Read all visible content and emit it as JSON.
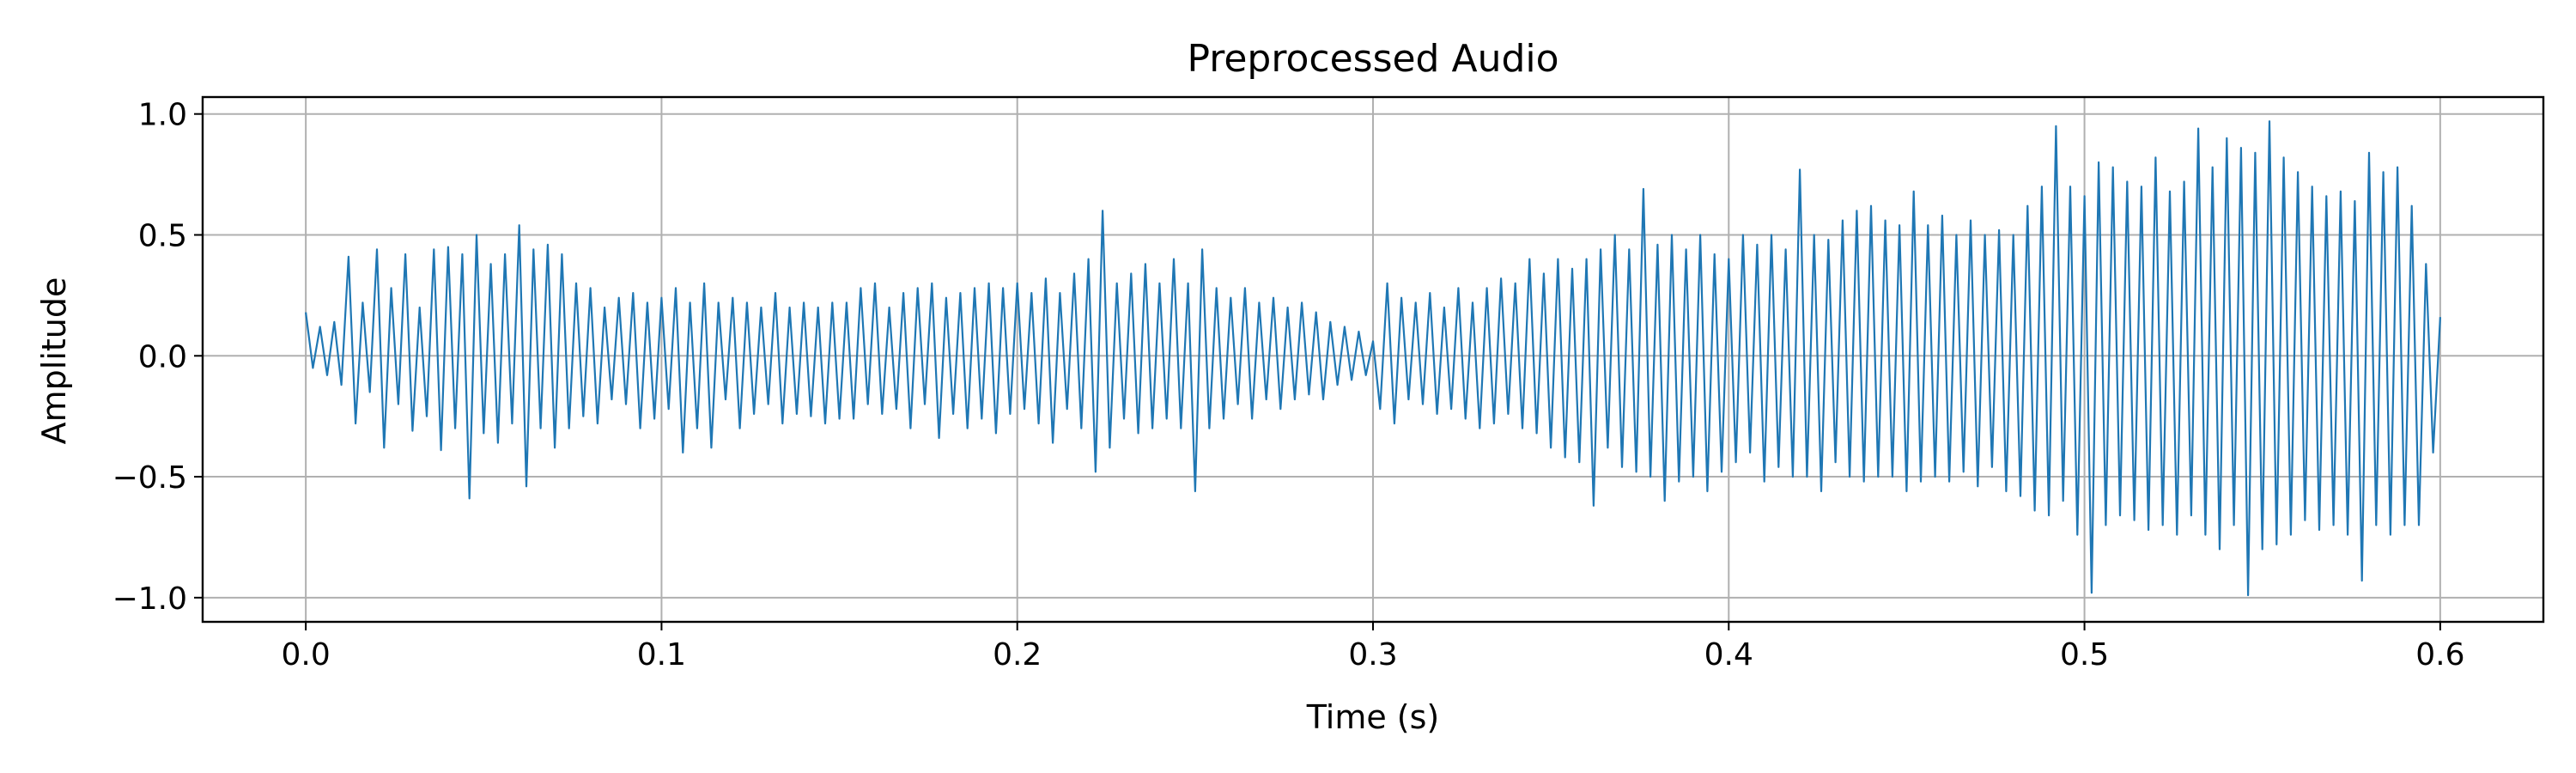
{
  "chart_data": {
    "type": "line",
    "title": "Preprocessed Audio",
    "xlabel": "Time (s)",
    "ylabel": "Amplitude",
    "xlim": [
      -0.029,
      0.629
    ],
    "ylim": [
      -1.1,
      1.07
    ],
    "xticks": [
      0.0,
      0.1,
      0.2,
      0.3,
      0.4,
      0.5,
      0.6
    ],
    "xtick_labels": [
      "0.0",
      "0.1",
      "0.2",
      "0.3",
      "0.4",
      "0.5",
      "0.6"
    ],
    "yticks": [
      1.0,
      0.5,
      0.0,
      -0.5,
      -1.0
    ],
    "ytick_labels": [
      "1.0",
      "0.5",
      "0.0",
      "−0.5",
      "−1.0"
    ],
    "grid": true,
    "line_color": "#1f77b4",
    "series": [
      {
        "values": [
          [
            0.0,
            0.18
          ],
          [
            0.002,
            -0.05
          ],
          [
            0.004,
            0.12
          ],
          [
            0.006,
            -0.08
          ],
          [
            0.008,
            0.14
          ],
          [
            0.01,
            -0.12
          ],
          [
            0.012,
            0.41
          ],
          [
            0.014,
            -0.28
          ],
          [
            0.016,
            0.22
          ],
          [
            0.018,
            -0.15
          ],
          [
            0.02,
            0.44
          ],
          [
            0.022,
            -0.38
          ],
          [
            0.024,
            0.28
          ],
          [
            0.026,
            -0.2
          ],
          [
            0.028,
            0.42
          ],
          [
            0.03,
            -0.31
          ],
          [
            0.032,
            0.2
          ],
          [
            0.034,
            -0.25
          ],
          [
            0.036,
            0.44
          ],
          [
            0.038,
            -0.39
          ],
          [
            0.04,
            0.45
          ],
          [
            0.042,
            -0.3
          ],
          [
            0.044,
            0.42
          ],
          [
            0.046,
            -0.59
          ],
          [
            0.048,
            0.5
          ],
          [
            0.05,
            -0.32
          ],
          [
            0.052,
            0.38
          ],
          [
            0.054,
            -0.36
          ],
          [
            0.056,
            0.42
          ],
          [
            0.058,
            -0.28
          ],
          [
            0.06,
            0.54
          ],
          [
            0.062,
            -0.54
          ],
          [
            0.064,
            0.44
          ],
          [
            0.066,
            -0.3
          ],
          [
            0.068,
            0.46
          ],
          [
            0.07,
            -0.38
          ],
          [
            0.072,
            0.42
          ],
          [
            0.074,
            -0.3
          ],
          [
            0.076,
            0.3
          ],
          [
            0.078,
            -0.25
          ],
          [
            0.08,
            0.28
          ],
          [
            0.082,
            -0.28
          ],
          [
            0.084,
            0.2
          ],
          [
            0.086,
            -0.18
          ],
          [
            0.088,
            0.24
          ],
          [
            0.09,
            -0.2
          ],
          [
            0.092,
            0.26
          ],
          [
            0.094,
            -0.3
          ],
          [
            0.096,
            0.22
          ],
          [
            0.098,
            -0.26
          ],
          [
            0.1,
            0.24
          ],
          [
            0.102,
            -0.22
          ],
          [
            0.104,
            0.28
          ],
          [
            0.106,
            -0.4
          ],
          [
            0.108,
            0.22
          ],
          [
            0.11,
            -0.3
          ],
          [
            0.112,
            0.3
          ],
          [
            0.114,
            -0.38
          ],
          [
            0.116,
            0.22
          ],
          [
            0.118,
            -0.18
          ],
          [
            0.12,
            0.24
          ],
          [
            0.122,
            -0.3
          ],
          [
            0.124,
            0.22
          ],
          [
            0.126,
            -0.24
          ],
          [
            0.128,
            0.2
          ],
          [
            0.13,
            -0.2
          ],
          [
            0.132,
            0.26
          ],
          [
            0.134,
            -0.28
          ],
          [
            0.136,
            0.2
          ],
          [
            0.138,
            -0.24
          ],
          [
            0.14,
            0.22
          ],
          [
            0.142,
            -0.25
          ],
          [
            0.144,
            0.2
          ],
          [
            0.146,
            -0.28
          ],
          [
            0.148,
            0.22
          ],
          [
            0.15,
            -0.26
          ],
          [
            0.152,
            0.22
          ],
          [
            0.154,
            -0.26
          ],
          [
            0.156,
            0.28
          ],
          [
            0.158,
            -0.2
          ],
          [
            0.16,
            0.3
          ],
          [
            0.162,
            -0.24
          ],
          [
            0.164,
            0.2
          ],
          [
            0.166,
            -0.22
          ],
          [
            0.168,
            0.26
          ],
          [
            0.17,
            -0.3
          ],
          [
            0.172,
            0.28
          ],
          [
            0.174,
            -0.2
          ],
          [
            0.176,
            0.3
          ],
          [
            0.178,
            -0.34
          ],
          [
            0.18,
            0.24
          ],
          [
            0.182,
            -0.24
          ],
          [
            0.184,
            0.26
          ],
          [
            0.186,
            -0.3
          ],
          [
            0.188,
            0.28
          ],
          [
            0.19,
            -0.26
          ],
          [
            0.192,
            0.3
          ],
          [
            0.194,
            -0.32
          ],
          [
            0.196,
            0.28
          ],
          [
            0.198,
            -0.24
          ],
          [
            0.2,
            0.3
          ],
          [
            0.202,
            -0.22
          ],
          [
            0.204,
            0.26
          ],
          [
            0.206,
            -0.28
          ],
          [
            0.208,
            0.32
          ],
          [
            0.21,
            -0.36
          ],
          [
            0.212,
            0.26
          ],
          [
            0.214,
            -0.22
          ],
          [
            0.216,
            0.34
          ],
          [
            0.218,
            -0.3
          ],
          [
            0.22,
            0.4
          ],
          [
            0.222,
            -0.48
          ],
          [
            0.224,
            0.6
          ],
          [
            0.226,
            -0.38
          ],
          [
            0.228,
            0.3
          ],
          [
            0.23,
            -0.26
          ],
          [
            0.232,
            0.34
          ],
          [
            0.234,
            -0.32
          ],
          [
            0.236,
            0.38
          ],
          [
            0.238,
            -0.3
          ],
          [
            0.24,
            0.3
          ],
          [
            0.242,
            -0.26
          ],
          [
            0.244,
            0.4
          ],
          [
            0.246,
            -0.3
          ],
          [
            0.248,
            0.3
          ],
          [
            0.25,
            -0.56
          ],
          [
            0.252,
            0.44
          ],
          [
            0.254,
            -0.3
          ],
          [
            0.256,
            0.28
          ],
          [
            0.258,
            -0.26
          ],
          [
            0.26,
            0.24
          ],
          [
            0.262,
            -0.2
          ],
          [
            0.264,
            0.28
          ],
          [
            0.266,
            -0.26
          ],
          [
            0.268,
            0.22
          ],
          [
            0.27,
            -0.18
          ],
          [
            0.272,
            0.24
          ],
          [
            0.274,
            -0.22
          ],
          [
            0.276,
            0.2
          ],
          [
            0.278,
            -0.18
          ],
          [
            0.28,
            0.22
          ],
          [
            0.282,
            -0.16
          ],
          [
            0.284,
            0.18
          ],
          [
            0.286,
            -0.18
          ],
          [
            0.288,
            0.14
          ],
          [
            0.29,
            -0.12
          ],
          [
            0.292,
            0.12
          ],
          [
            0.294,
            -0.1
          ],
          [
            0.296,
            0.1
          ],
          [
            0.298,
            -0.08
          ],
          [
            0.3,
            0.06
          ],
          [
            0.302,
            -0.22
          ],
          [
            0.304,
            0.3
          ],
          [
            0.306,
            -0.28
          ],
          [
            0.308,
            0.24
          ],
          [
            0.31,
            -0.18
          ],
          [
            0.312,
            0.22
          ],
          [
            0.314,
            -0.2
          ],
          [
            0.316,
            0.26
          ],
          [
            0.318,
            -0.24
          ],
          [
            0.32,
            0.2
          ],
          [
            0.322,
            -0.22
          ],
          [
            0.324,
            0.28
          ],
          [
            0.326,
            -0.26
          ],
          [
            0.328,
            0.22
          ],
          [
            0.33,
            -0.3
          ],
          [
            0.332,
            0.28
          ],
          [
            0.334,
            -0.28
          ],
          [
            0.336,
            0.32
          ],
          [
            0.338,
            -0.24
          ],
          [
            0.34,
            0.3
          ],
          [
            0.342,
            -0.3
          ],
          [
            0.344,
            0.4
          ],
          [
            0.346,
            -0.32
          ],
          [
            0.348,
            0.34
          ],
          [
            0.35,
            -0.38
          ],
          [
            0.352,
            0.4
          ],
          [
            0.354,
            -0.42
          ],
          [
            0.356,
            0.36
          ],
          [
            0.358,
            -0.44
          ],
          [
            0.36,
            0.4
          ],
          [
            0.362,
            -0.62
          ],
          [
            0.364,
            0.44
          ],
          [
            0.366,
            -0.38
          ],
          [
            0.368,
            0.5
          ],
          [
            0.37,
            -0.46
          ],
          [
            0.372,
            0.44
          ],
          [
            0.374,
            -0.48
          ],
          [
            0.376,
            0.69
          ],
          [
            0.378,
            -0.5
          ],
          [
            0.38,
            0.46
          ],
          [
            0.382,
            -0.6
          ],
          [
            0.384,
            0.5
          ],
          [
            0.386,
            -0.52
          ],
          [
            0.388,
            0.44
          ],
          [
            0.39,
            -0.5
          ],
          [
            0.392,
            0.5
          ],
          [
            0.394,
            -0.56
          ],
          [
            0.396,
            0.42
          ],
          [
            0.398,
            -0.48
          ],
          [
            0.4,
            0.4
          ],
          [
            0.402,
            -0.44
          ],
          [
            0.404,
            0.5
          ],
          [
            0.406,
            -0.4
          ],
          [
            0.408,
            0.46
          ],
          [
            0.41,
            -0.52
          ],
          [
            0.412,
            0.5
          ],
          [
            0.414,
            -0.46
          ],
          [
            0.416,
            0.44
          ],
          [
            0.418,
            -0.5
          ],
          [
            0.42,
            0.77
          ],
          [
            0.422,
            -0.5
          ],
          [
            0.424,
            0.5
          ],
          [
            0.426,
            -0.56
          ],
          [
            0.428,
            0.48
          ],
          [
            0.43,
            -0.44
          ],
          [
            0.432,
            0.56
          ],
          [
            0.434,
            -0.5
          ],
          [
            0.436,
            0.6
          ],
          [
            0.438,
            -0.52
          ],
          [
            0.44,
            0.62
          ],
          [
            0.442,
            -0.5
          ],
          [
            0.444,
            0.56
          ],
          [
            0.446,
            -0.5
          ],
          [
            0.448,
            0.54
          ],
          [
            0.45,
            -0.56
          ],
          [
            0.452,
            0.68
          ],
          [
            0.454,
            -0.52
          ],
          [
            0.456,
            0.54
          ],
          [
            0.458,
            -0.5
          ],
          [
            0.46,
            0.58
          ],
          [
            0.462,
            -0.52
          ],
          [
            0.464,
            0.5
          ],
          [
            0.466,
            -0.48
          ],
          [
            0.468,
            0.56
          ],
          [
            0.47,
            -0.54
          ],
          [
            0.472,
            0.5
          ],
          [
            0.474,
            -0.46
          ],
          [
            0.476,
            0.52
          ],
          [
            0.478,
            -0.56
          ],
          [
            0.48,
            0.5
          ],
          [
            0.482,
            -0.58
          ],
          [
            0.484,
            0.62
          ],
          [
            0.486,
            -0.64
          ],
          [
            0.488,
            0.7
          ],
          [
            0.49,
            -0.66
          ],
          [
            0.492,
            0.95
          ],
          [
            0.494,
            -0.6
          ],
          [
            0.496,
            0.7
          ],
          [
            0.498,
            -0.74
          ],
          [
            0.5,
            0.66
          ],
          [
            0.502,
            -0.98
          ],
          [
            0.504,
            0.8
          ],
          [
            0.506,
            -0.7
          ],
          [
            0.508,
            0.78
          ],
          [
            0.51,
            -0.66
          ],
          [
            0.512,
            0.72
          ],
          [
            0.514,
            -0.68
          ],
          [
            0.516,
            0.7
          ],
          [
            0.518,
            -0.72
          ],
          [
            0.52,
            0.82
          ],
          [
            0.522,
            -0.7
          ],
          [
            0.524,
            0.68
          ],
          [
            0.526,
            -0.74
          ],
          [
            0.528,
            0.72
          ],
          [
            0.53,
            -0.66
          ],
          [
            0.532,
            0.94
          ],
          [
            0.534,
            -0.74
          ],
          [
            0.536,
            0.78
          ],
          [
            0.538,
            -0.8
          ],
          [
            0.54,
            0.9
          ],
          [
            0.542,
            -0.7
          ],
          [
            0.544,
            0.86
          ],
          [
            0.546,
            -0.99
          ],
          [
            0.548,
            0.84
          ],
          [
            0.55,
            -0.8
          ],
          [
            0.552,
            0.97
          ],
          [
            0.554,
            -0.78
          ],
          [
            0.556,
            0.82
          ],
          [
            0.558,
            -0.74
          ],
          [
            0.56,
            0.76
          ],
          [
            0.562,
            -0.68
          ],
          [
            0.564,
            0.7
          ],
          [
            0.566,
            -0.72
          ],
          [
            0.568,
            0.66
          ],
          [
            0.57,
            -0.7
          ],
          [
            0.572,
            0.68
          ],
          [
            0.574,
            -0.74
          ],
          [
            0.576,
            0.64
          ],
          [
            0.578,
            -0.93
          ],
          [
            0.58,
            0.84
          ],
          [
            0.582,
            -0.7
          ],
          [
            0.584,
            0.76
          ],
          [
            0.586,
            -0.74
          ],
          [
            0.588,
            0.78
          ],
          [
            0.59,
            -0.7
          ],
          [
            0.592,
            0.62
          ],
          [
            0.594,
            -0.7
          ],
          [
            0.596,
            0.38
          ],
          [
            0.598,
            -0.4
          ],
          [
            0.6,
            0.16
          ]
        ]
      }
    ]
  }
}
